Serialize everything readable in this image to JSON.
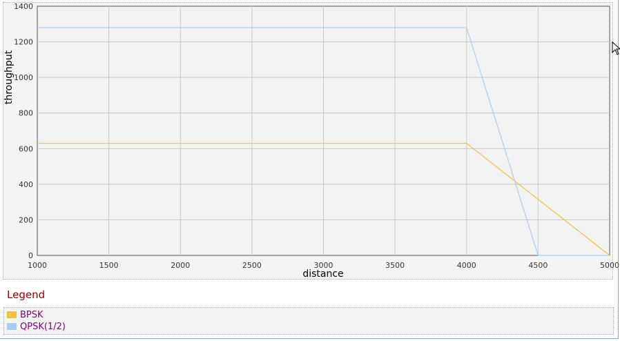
{
  "chart_data": {
    "type": "line",
    "xlabel": "distance",
    "ylabel": "throughput",
    "xlim": [
      1000,
      5000
    ],
    "ylim": [
      0,
      1400
    ],
    "x_ticks": [
      1000,
      1500,
      2000,
      2500,
      3000,
      3500,
      4000,
      4500,
      5000
    ],
    "y_ticks": [
      0,
      200,
      400,
      600,
      800,
      1000,
      1200,
      1400
    ],
    "grid": true,
    "series": [
      {
        "name": "BPSK",
        "color": "#f0c040",
        "points": [
          [
            1000,
            630
          ],
          [
            4000,
            630
          ],
          [
            5000,
            0
          ]
        ]
      },
      {
        "name": "QPSK(1/2)",
        "color": "#a9cdef",
        "points": [
          [
            1000,
            1280
          ],
          [
            4000,
            1280
          ],
          [
            4500,
            0
          ],
          [
            5000,
            0
          ]
        ]
      }
    ]
  },
  "legend": {
    "title": "Legend",
    "items": [
      {
        "label": "BPSK",
        "color": "#f0c040"
      },
      {
        "label": "QPSK(1/2)",
        "color": "#a9cdef"
      }
    ]
  },
  "cursor_icon": "arrow-cursor-icon"
}
